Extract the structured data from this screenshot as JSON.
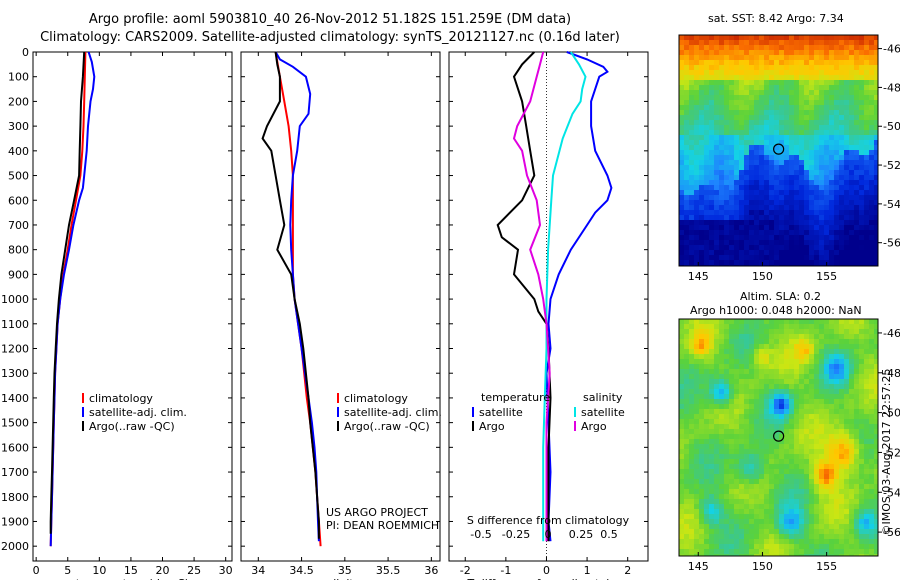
{
  "header": {
    "line1": "Argo profile: aoml 5903810_40 26-Nov-2012 51.182S 151.259E (DM data)",
    "line2": "Climatology: CARS2009. Satellite-adjusted climatology: synTS_20121127.nc (0.16d later)"
  },
  "colors": {
    "climatology": "#ff0000",
    "satellite": "#0000ff",
    "argo": "#000000",
    "t_satellite": "#0000ff",
    "t_argo": "#000000",
    "s_satellite": "#00e5e5",
    "s_argo": "#e000e0",
    "marker": "#000000"
  },
  "chart_data": [
    {
      "type": "line",
      "panel": "temperature",
      "xlabel": "temperature (deg C)",
      "xlim": [
        -0.5,
        31
      ],
      "xticks": [
        "0",
        "5",
        "10",
        "15",
        "20",
        "25",
        "30"
      ],
      "ylim": [
        2060,
        0
      ],
      "yticks": [
        "0",
        "100",
        "200",
        "300",
        "400",
        "500",
        "600",
        "700",
        "800",
        "900",
        "1000",
        "1100",
        "1200",
        "1300",
        "1400",
        "1500",
        "1600",
        "1700",
        "1800",
        "1900",
        "2000"
      ],
      "grid": false,
      "legend": [
        "climatology",
        "satellite-adj. clim.",
        "Argo(..raw -QC)"
      ],
      "legend_position": "lower-center",
      "series": [
        {
          "name": "climatology",
          "depth": [
            0,
            100,
            200,
            300,
            400,
            500,
            600,
            700,
            800,
            900,
            1000,
            1100,
            1200,
            1300,
            1400,
            1500,
            1600,
            1700,
            1800,
            1900,
            2000
          ],
          "values": [
            7.8,
            7.7,
            7.6,
            7.5,
            7.3,
            7.0,
            6.3,
            5.6,
            5.0,
            4.3,
            3.8,
            3.4,
            3.2,
            3.0,
            2.9,
            2.8,
            2.7,
            2.6,
            2.5,
            2.4,
            2.3
          ]
        },
        {
          "name": "satellite-adj. clim.",
          "depth": [
            0,
            40,
            100,
            150,
            200,
            300,
            400,
            500,
            550,
            600,
            700,
            800,
            900,
            1000,
            1100,
            1200,
            1300,
            1400,
            1500,
            1600,
            1700,
            1800,
            1900,
            2000
          ],
          "values": [
            8.3,
            8.8,
            9.2,
            9.0,
            8.6,
            8.2,
            8.0,
            7.6,
            7.4,
            6.8,
            5.9,
            5.2,
            4.4,
            3.8,
            3.4,
            3.2,
            3.0,
            2.9,
            2.8,
            2.7,
            2.6,
            2.5,
            2.4,
            2.3
          ]
        },
        {
          "name": "Argo(..raw -QC)",
          "depth": [
            0,
            100,
            200,
            300,
            400,
            500,
            600,
            700,
            800,
            900,
            1000,
            1100,
            1200,
            1300,
            1400,
            1500,
            1600,
            1700,
            1800,
            1900,
            1950
          ],
          "values": [
            7.6,
            7.4,
            7.1,
            7.0,
            6.9,
            6.8,
            6.0,
            5.2,
            4.6,
            4.0,
            3.6,
            3.3,
            3.1,
            2.9,
            2.8,
            2.7,
            2.6,
            2.5,
            2.4,
            2.3,
            2.3
          ]
        }
      ],
      "annotations": []
    },
    {
      "type": "line",
      "panel": "salinity",
      "xlabel": "salinity",
      "xlim": [
        33.8,
        36.1
      ],
      "xticks": [
        "34",
        "34.5",
        "35",
        "35.5",
        "36"
      ],
      "ylim": [
        2060,
        0
      ],
      "grid": false,
      "legend": [
        "climatology",
        "satellite-adj. clim.",
        "Argo(..raw -QC)"
      ],
      "legend_position": "lower-center",
      "series": [
        {
          "name": "climatology",
          "depth": [
            0,
            100,
            200,
            300,
            400,
            500,
            600,
            700,
            800,
            900,
            1000,
            1100,
            1200,
            1300,
            1400,
            1500,
            1600,
            1700,
            1800,
            1900,
            2000
          ],
          "values": [
            34.2,
            34.25,
            34.3,
            34.35,
            34.38,
            34.4,
            34.4,
            34.4,
            34.4,
            34.4,
            34.42,
            34.46,
            34.5,
            34.53,
            34.56,
            34.6,
            34.63,
            34.66,
            34.68,
            34.7,
            34.72
          ]
        },
        {
          "name": "satellite-adj. clim.",
          "depth": [
            0,
            30,
            60,
            100,
            170,
            250,
            300,
            400,
            500,
            600,
            700,
            800,
            900,
            1000,
            1100,
            1200,
            1300,
            1400,
            1500,
            1600,
            1700,
            1800,
            1900,
            1980
          ],
          "values": [
            34.2,
            34.25,
            34.4,
            34.55,
            34.6,
            34.58,
            34.48,
            34.45,
            34.4,
            34.38,
            34.37,
            34.38,
            34.4,
            34.42,
            34.46,
            34.5,
            34.54,
            34.58,
            34.62,
            34.65,
            34.67,
            34.68,
            34.69,
            34.7
          ]
        },
        {
          "name": "Argo(..raw -QC)",
          "depth": [
            0,
            50,
            100,
            200,
            300,
            350,
            400,
            500,
            600,
            700,
            800,
            900,
            1000,
            1100,
            1200,
            1300,
            1400,
            1500,
            1600,
            1700,
            1800,
            1900,
            1970
          ],
          "values": [
            34.2,
            34.22,
            34.25,
            34.25,
            34.1,
            34.05,
            34.15,
            34.2,
            34.25,
            34.3,
            34.22,
            34.38,
            34.42,
            34.48,
            34.52,
            34.55,
            34.58,
            34.6,
            34.63,
            34.66,
            34.68,
            34.7,
            34.7
          ]
        }
      ],
      "annotations": [
        "US ARGO PROJECT",
        "PI: DEAN ROEMMICH"
      ]
    },
    {
      "type": "line",
      "panel": "difference",
      "xlabel": "T difference from climatology",
      "xlabel_top": "S difference from climatology",
      "xlim": [
        -2.4,
        2.5
      ],
      "xticks": [
        "-2",
        "-1",
        "0",
        "1",
        "2"
      ],
      "xticks_s": [
        "-0.5",
        "-0.25",
        "0",
        "0.25",
        "0.5"
      ],
      "ylim": [
        2060,
        0
      ],
      "grid": false,
      "zero_line": true,
      "legend_groups": [
        {
          "title": "temperature",
          "items": [
            "satellite",
            "Argo"
          ]
        },
        {
          "title": "salinity",
          "items": [
            "satellite",
            "Argo"
          ]
        }
      ],
      "legend_position": "lower-center",
      "series": [
        {
          "name": "satellite",
          "group": "temperature",
          "depth": [
            0,
            30,
            60,
            80,
            100,
            150,
            200,
            300,
            400,
            500,
            550,
            600,
            650,
            700,
            800,
            900,
            1000,
            1100,
            1200,
            1300,
            1500,
            1700,
            1900,
            1980
          ],
          "values": [
            0.5,
            1.0,
            1.4,
            1.5,
            1.3,
            1.2,
            1.1,
            1.1,
            1.2,
            1.5,
            1.6,
            1.5,
            1.2,
            1.0,
            0.6,
            0.3,
            0.1,
            0.05,
            0.1,
            0.0,
            0.05,
            0.1,
            0.05,
            0.1
          ]
        },
        {
          "name": "Argo",
          "group": "temperature",
          "depth": [
            0,
            50,
            100,
            200,
            300,
            400,
            500,
            600,
            700,
            750,
            800,
            900,
            1000,
            1050,
            1100,
            1200,
            1400,
            1600,
            1800,
            1980
          ],
          "values": [
            -0.3,
            -0.6,
            -0.8,
            -0.6,
            -0.5,
            -0.4,
            -0.3,
            -0.6,
            -1.2,
            -1.1,
            -0.7,
            -0.8,
            -0.3,
            -0.2,
            0.0,
            0.05,
            0.1,
            0.05,
            0.05,
            0.05
          ]
        },
        {
          "name": "satellite",
          "group": "salinity",
          "depth": [
            0,
            50,
            100,
            150,
            200,
            250,
            300,
            350,
            400,
            500,
            600,
            800,
            1000,
            1200,
            1400,
            1600,
            1800,
            1980
          ],
          "values": [
            0.15,
            0.2,
            0.24,
            0.22,
            0.21,
            0.16,
            0.13,
            0.1,
            0.08,
            0.04,
            0.03,
            0.01,
            0.0,
            0.0,
            -0.01,
            -0.02,
            -0.02,
            -0.02
          ]
        },
        {
          "name": "Argo",
          "group": "salinity",
          "depth": [
            0,
            50,
            100,
            200,
            300,
            350,
            400,
            500,
            600,
            700,
            800,
            900,
            1000,
            1100,
            1300,
            1500,
            1700,
            1900,
            1980
          ],
          "values": [
            -0.02,
            -0.04,
            -0.06,
            -0.1,
            -0.18,
            -0.2,
            -0.15,
            -0.12,
            -0.06,
            -0.04,
            -0.1,
            -0.05,
            -0.02,
            0.0,
            0.02,
            0.0,
            0.0,
            0.0,
            0.0
          ]
        }
      ],
      "annotations": []
    },
    {
      "type": "heatmap",
      "panel": "SST map",
      "title": "sat. SST: 8.42  Argo: 7.34",
      "xticks": [
        "145",
        "150",
        "155"
      ],
      "yticks": [
        "-46",
        "-48",
        "-50",
        "-52",
        "-54",
        "-56"
      ],
      "xlim": [
        143.5,
        159
      ],
      "ylim": [
        -57.2,
        -45.3
      ],
      "marker": {
        "lon": 151.26,
        "lat": -51.18
      }
    },
    {
      "type": "heatmap",
      "panel": "SLA map",
      "title": "Altim. SLA: 0.2",
      "subtitle": "Argo h1000: 0.048 h2000: NaN",
      "xticks": [
        "145",
        "150",
        "155"
      ],
      "yticks": [
        "-46",
        "-48",
        "-50",
        "-52",
        "-54",
        "-56"
      ],
      "xlim": [
        143.5,
        159
      ],
      "ylim": [
        -57.2,
        -45.3
      ],
      "marker": {
        "lon": 151.26,
        "lat": -51.18
      }
    }
  ],
  "credit": "©IMOS 03-Aug-2017 22:57:25"
}
